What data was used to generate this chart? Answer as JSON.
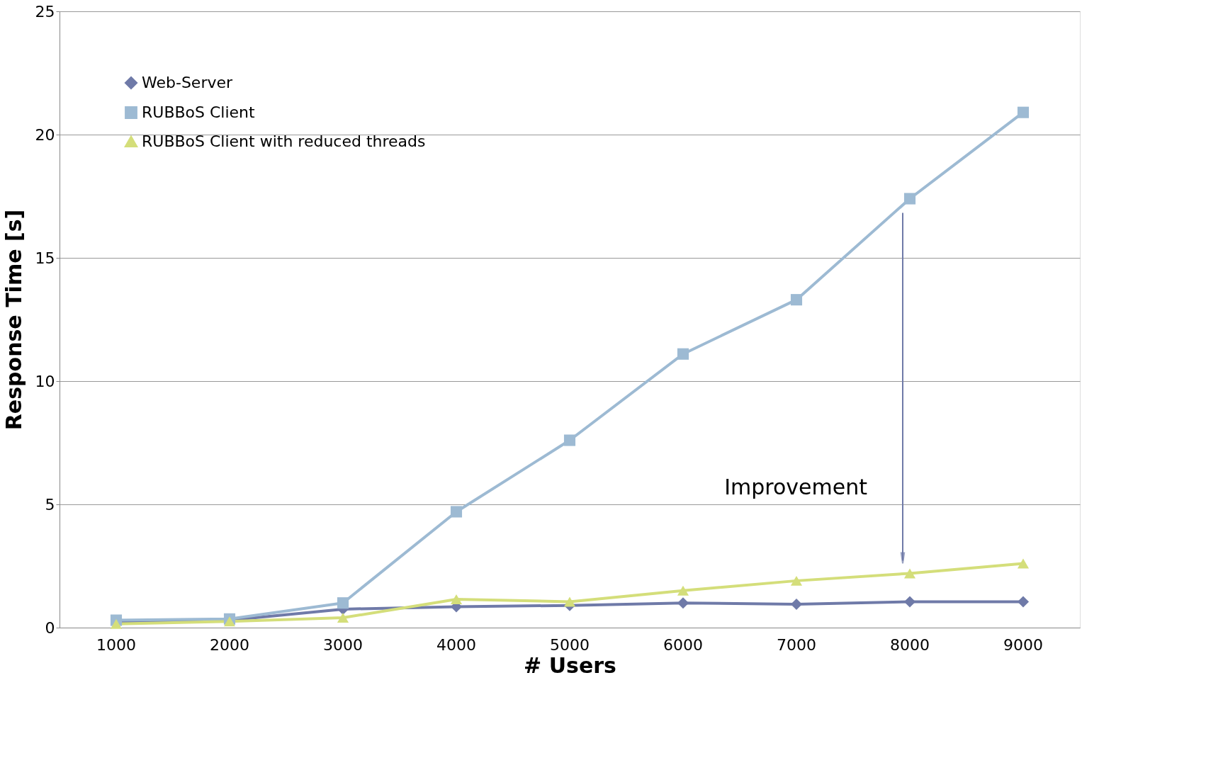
{
  "chart_data": {
    "type": "line",
    "xlabel": "# Users",
    "ylabel": "Response Time [s]",
    "categories": [
      "1000",
      "2000",
      "3000",
      "4000",
      "5000",
      "6000",
      "7000",
      "8000",
      "9000"
    ],
    "series": [
      {
        "name": "Web-Server",
        "color": "#6f7aa8",
        "marker": "diamond",
        "values": [
          0.25,
          0.3,
          0.75,
          0.85,
          0.9,
          1.0,
          0.95,
          1.05,
          1.05
        ]
      },
      {
        "name": "RUBBoS Client",
        "color": "#9dbad3",
        "marker": "square",
        "values": [
          0.3,
          0.35,
          1.0,
          4.7,
          7.6,
          11.1,
          13.3,
          17.4,
          20.9
        ]
      },
      {
        "name": "RUBBoS Client with reduced threads",
        "color": "#d4de7a",
        "marker": "triangle",
        "values": [
          0.15,
          0.25,
          0.4,
          1.15,
          1.05,
          1.5,
          1.9,
          2.2,
          2.6
        ]
      }
    ],
    "ylim": [
      0,
      25
    ],
    "yticks": [
      0,
      5,
      10,
      15,
      20,
      25
    ],
    "grid": "y",
    "legend": "top left",
    "annotations": [
      "Improvement"
    ]
  }
}
